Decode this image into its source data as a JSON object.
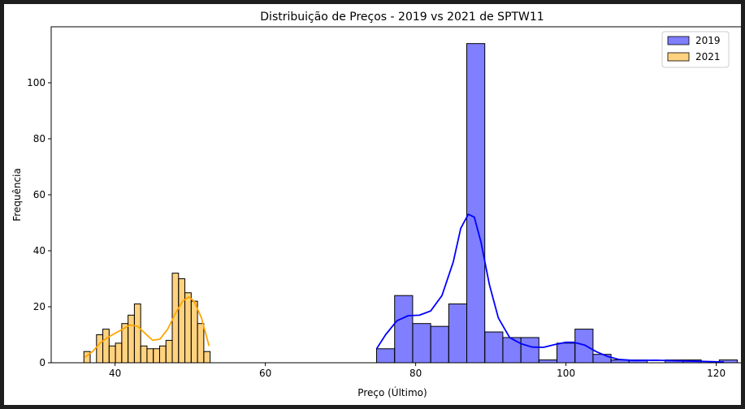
{
  "chart_data": {
    "type": "histogram",
    "title": "Distribuição de Preços - 2019 vs 2021 de SPTW11",
    "xlabel": "Preço (Último)",
    "ylabel": "Frequência",
    "xlim": [
      31.5,
      123.5
    ],
    "ylim": [
      0,
      120
    ],
    "xticks": [
      40,
      60,
      80,
      100,
      120
    ],
    "yticks": [
      0,
      20,
      40,
      60,
      80,
      100
    ],
    "grid": false,
    "legend_position": "top-right",
    "series": [
      {
        "name": "2019",
        "color": "#0000ff",
        "bin_start": 74.8,
        "bin_width": 2.4,
        "counts": [
          5,
          24,
          14,
          13,
          21,
          114,
          11,
          9,
          9,
          1,
          7,
          12,
          3,
          1,
          1,
          0,
          1,
          1,
          0,
          1
        ],
        "kde": [
          [
            74.8,
            5
          ],
          [
            76.0,
            10
          ],
          [
            77.5,
            15
          ],
          [
            79.0,
            16.8
          ],
          [
            80.5,
            17
          ],
          [
            82.0,
            18.5
          ],
          [
            83.5,
            24
          ],
          [
            85.0,
            36
          ],
          [
            86.0,
            48
          ],
          [
            87.0,
            53
          ],
          [
            87.8,
            52
          ],
          [
            88.7,
            43
          ],
          [
            89.8,
            28
          ],
          [
            91.0,
            16
          ],
          [
            92.5,
            9
          ],
          [
            94.0,
            6.8
          ],
          [
            95.5,
            5.6
          ],
          [
            97.0,
            5.5
          ],
          [
            98.5,
            6.5
          ],
          [
            100.0,
            7.3
          ],
          [
            101.0,
            7.3
          ],
          [
            102.5,
            6.3
          ],
          [
            104.0,
            4
          ],
          [
            105.5,
            2.3
          ],
          [
            107.0,
            1.2
          ],
          [
            109.0,
            0.8
          ],
          [
            112.0,
            0.9
          ],
          [
            115.0,
            0.7
          ],
          [
            118.0,
            0.5
          ],
          [
            121.0,
            0.3
          ]
        ]
      },
      {
        "name": "2021",
        "color": "#ffa500",
        "bin_start": 35.85,
        "bin_width": 0.84,
        "counts": [
          4,
          0,
          10,
          12,
          6,
          7,
          14,
          17,
          21,
          6,
          5,
          5,
          6,
          8,
          32,
          30,
          25,
          22,
          14,
          4
        ],
        "kde": [
          [
            36.0,
            2
          ],
          [
            37.0,
            4
          ],
          [
            38.0,
            7
          ],
          [
            39.0,
            9
          ],
          [
            40.0,
            10.5
          ],
          [
            41.0,
            12
          ],
          [
            42.0,
            13.5
          ],
          [
            43.0,
            13
          ],
          [
            44.0,
            10.5
          ],
          [
            45.0,
            8
          ],
          [
            46.0,
            8.5
          ],
          [
            47.0,
            12
          ],
          [
            48.0,
            17.5
          ],
          [
            49.0,
            22
          ],
          [
            49.8,
            23.5
          ],
          [
            50.5,
            22
          ],
          [
            51.5,
            16
          ],
          [
            52.5,
            6
          ]
        ]
      }
    ]
  }
}
